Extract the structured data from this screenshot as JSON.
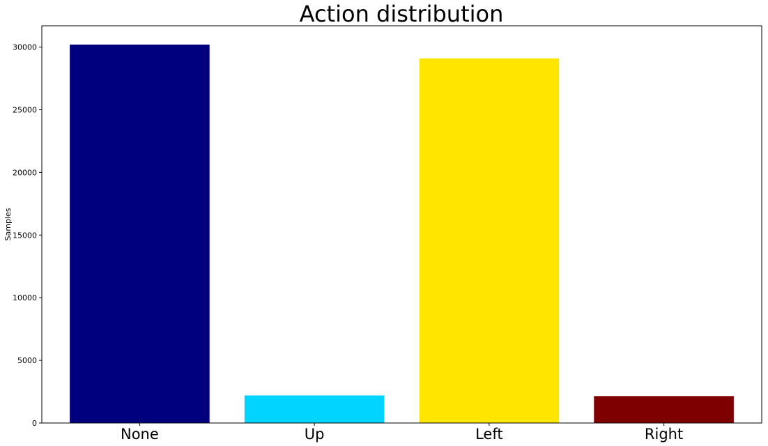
{
  "chart_data": {
    "type": "bar",
    "title": "Action distribution",
    "xlabel": "",
    "ylabel": "Samples",
    "categories": [
      "None",
      "Up",
      "Left",
      "Right"
    ],
    "values": [
      30200,
      2200,
      29100,
      2150
    ],
    "colors": [
      "#00007f",
      "#00d4ff",
      "#ffe500",
      "#7f0000"
    ],
    "ylim": [
      0,
      31700
    ],
    "yticks": [
      0,
      5000,
      10000,
      15000,
      20000,
      25000,
      30000
    ],
    "ytick_labels": [
      "0",
      "5000",
      "10000",
      "15000",
      "20000",
      "25000",
      "30000"
    ],
    "grid": false,
    "legend": "none"
  }
}
